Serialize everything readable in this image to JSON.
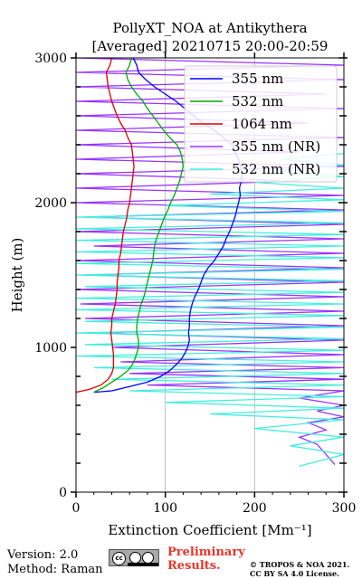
{
  "footer": {
    "version": "Version: 2.0",
    "method": "Method: Raman",
    "prelim_line1": "Preliminary",
    "prelim_line2": "Results.",
    "copyright_line1": "© TROPOS & NOA 2021.",
    "copyright_line2": "CC BY SA 4.0 License.",
    "license_badge_text": "cc",
    "prelim_color": "#e8352a"
  },
  "chart_data": {
    "type": "line",
    "title": "PollyXT_NOA at Antikythera",
    "subtitle": "[Averaged] 20210715 20:00-20:59",
    "xlabel": "Extinction Coefficient [Mm⁻¹]",
    "ylabel": "Height (m)",
    "xlim": [
      0,
      300
    ],
    "ylim": [
      0,
      3000
    ],
    "xticks": [
      0,
      100,
      200,
      300
    ],
    "yticks": [
      0,
      1000,
      2000,
      3000
    ],
    "grid": "vertical",
    "legend_position": "top-right",
    "series": [
      {
        "name": "355 nm",
        "color": "#0000ff",
        "points": [
          [
            20,
            690
          ],
          [
            40,
            700
          ],
          [
            60,
            730
          ],
          [
            80,
            760
          ],
          [
            95,
            800
          ],
          [
            105,
            840
          ],
          [
            112,
            880
          ],
          [
            118,
            920
          ],
          [
            122,
            960
          ],
          [
            125,
            1000
          ],
          [
            127,
            1050
          ],
          [
            126,
            1100
          ],
          [
            127,
            1150
          ],
          [
            127,
            1200
          ],
          [
            128,
            1250
          ],
          [
            130,
            1300
          ],
          [
            133,
            1350
          ],
          [
            137,
            1400
          ],
          [
            140,
            1450
          ],
          [
            143,
            1500
          ],
          [
            148,
            1550
          ],
          [
            155,
            1600
          ],
          [
            160,
            1650
          ],
          [
            165,
            1700
          ],
          [
            168,
            1750
          ],
          [
            172,
            1800
          ],
          [
            175,
            1850
          ],
          [
            178,
            1900
          ],
          [
            180,
            1950
          ],
          [
            182,
            2000
          ],
          [
            184,
            2050
          ],
          [
            183,
            2100
          ],
          [
            185,
            2150
          ],
          [
            186,
            2200
          ],
          [
            184,
            2250
          ],
          [
            182,
            2300
          ],
          [
            178,
            2350
          ],
          [
            175,
            2400
          ],
          [
            165,
            2450
          ],
          [
            155,
            2500
          ],
          [
            142,
            2550
          ],
          [
            132,
            2600
          ],
          [
            122,
            2650
          ],
          [
            112,
            2700
          ],
          [
            100,
            2750
          ],
          [
            88,
            2800
          ],
          [
            78,
            2850
          ],
          [
            70,
            2900
          ],
          [
            68,
            2950
          ],
          [
            64,
            3000
          ]
        ]
      },
      {
        "name": "532 nm",
        "color": "#00aa00",
        "points": [
          [
            20,
            690
          ],
          [
            30,
            720
          ],
          [
            40,
            760
          ],
          [
            50,
            800
          ],
          [
            58,
            840
          ],
          [
            63,
            880
          ],
          [
            66,
            920
          ],
          [
            68,
            960
          ],
          [
            70,
            1000
          ],
          [
            70,
            1050
          ],
          [
            68,
            1100
          ],
          [
            68,
            1150
          ],
          [
            69,
            1200
          ],
          [
            71,
            1250
          ],
          [
            73,
            1300
          ],
          [
            76,
            1350
          ],
          [
            78,
            1400
          ],
          [
            80,
            1450
          ],
          [
            82,
            1500
          ],
          [
            84,
            1550
          ],
          [
            86,
            1600
          ],
          [
            87,
            1650
          ],
          [
            88,
            1700
          ],
          [
            90,
            1750
          ],
          [
            93,
            1800
          ],
          [
            96,
            1850
          ],
          [
            99,
            1900
          ],
          [
            103,
            1950
          ],
          [
            106,
            2000
          ],
          [
            110,
            2050
          ],
          [
            113,
            2100
          ],
          [
            116,
            2150
          ],
          [
            118,
            2200
          ],
          [
            120,
            2250
          ],
          [
            119,
            2300
          ],
          [
            117,
            2350
          ],
          [
            113,
            2400
          ],
          [
            105,
            2450
          ],
          [
            98,
            2500
          ],
          [
            92,
            2550
          ],
          [
            86,
            2600
          ],
          [
            80,
            2650
          ],
          [
            75,
            2700
          ],
          [
            68,
            2750
          ],
          [
            62,
            2800
          ],
          [
            58,
            2850
          ],
          [
            56,
            2900
          ],
          [
            60,
            2950
          ],
          [
            62,
            3000
          ]
        ]
      },
      {
        "name": "1064 nm",
        "color": "#dd0000",
        "points": [
          [
            0,
            690
          ],
          [
            15,
            710
          ],
          [
            28,
            740
          ],
          [
            36,
            780
          ],
          [
            40,
            820
          ],
          [
            42,
            860
          ],
          [
            42,
            900
          ],
          [
            42,
            950
          ],
          [
            41,
            1000
          ],
          [
            40,
            1050
          ],
          [
            39,
            1100
          ],
          [
            40,
            1150
          ],
          [
            40,
            1200
          ],
          [
            42,
            1250
          ],
          [
            44,
            1300
          ],
          [
            45,
            1350
          ],
          [
            46,
            1400
          ],
          [
            46,
            1450
          ],
          [
            47,
            1500
          ],
          [
            48,
            1550
          ],
          [
            48,
            1600
          ],
          [
            50,
            1650
          ],
          [
            51,
            1700
          ],
          [
            52,
            1750
          ],
          [
            53,
            1800
          ],
          [
            55,
            1850
          ],
          [
            57,
            1900
          ],
          [
            58,
            1950
          ],
          [
            60,
            2000
          ],
          [
            61,
            2050
          ],
          [
            62,
            2100
          ],
          [
            63,
            2150
          ],
          [
            64,
            2200
          ],
          [
            65,
            2250
          ],
          [
            64,
            2300
          ],
          [
            63,
            2350
          ],
          [
            62,
            2400
          ],
          [
            58,
            2450
          ],
          [
            55,
            2500
          ],
          [
            50,
            2550
          ],
          [
            46,
            2600
          ],
          [
            43,
            2650
          ],
          [
            40,
            2700
          ],
          [
            38,
            2750
          ],
          [
            36,
            2800
          ],
          [
            35,
            2850
          ],
          [
            34,
            2900
          ],
          [
            38,
            2950
          ],
          [
            40,
            3000
          ]
        ]
      },
      {
        "name": "355 nm (NR)",
        "color": "#9933ff",
        "points": [
          [
            290,
            190
          ],
          [
            280,
            260
          ],
          [
            270,
            330
          ],
          [
            250,
            380
          ],
          [
            280,
            430
          ],
          [
            260,
            480
          ],
          [
            300,
            520
          ],
          [
            270,
            560
          ],
          [
            300,
            600
          ],
          [
            250,
            650
          ],
          [
            300,
            700
          ],
          [
            80,
            740
          ],
          [
            300,
            780
          ],
          [
            60,
            820
          ],
          [
            300,
            860
          ],
          [
            50,
            900
          ],
          [
            300,
            950
          ],
          [
            40,
            1000
          ],
          [
            300,
            1050
          ],
          [
            20,
            1100
          ],
          [
            300,
            1150
          ],
          [
            10,
            1200
          ],
          [
            300,
            1250
          ],
          [
            5,
            1300
          ],
          [
            300,
            1350
          ],
          [
            0,
            1400
          ],
          [
            300,
            1450
          ],
          [
            10,
            1500
          ],
          [
            300,
            1550
          ],
          [
            0,
            1600
          ],
          [
            300,
            1650
          ],
          [
            20,
            1700
          ],
          [
            300,
            1750
          ],
          [
            0,
            1800
          ],
          [
            300,
            1850
          ],
          [
            10,
            1900
          ],
          [
            300,
            1950
          ],
          [
            0,
            2000
          ],
          [
            300,
            2050
          ],
          [
            0,
            2100
          ],
          [
            250,
            2150
          ],
          [
            0,
            2200
          ],
          [
            300,
            2250
          ],
          [
            0,
            2300
          ],
          [
            250,
            2350
          ],
          [
            0,
            2400
          ],
          [
            300,
            2450
          ],
          [
            0,
            2500
          ],
          [
            260,
            2550
          ],
          [
            0,
            2600
          ],
          [
            300,
            2650
          ],
          [
            0,
            2700
          ],
          [
            280,
            2750
          ],
          [
            0,
            2800
          ],
          [
            300,
            2850
          ],
          [
            0,
            2900
          ],
          [
            300,
            2950
          ],
          [
            0,
            3000
          ]
        ]
      },
      {
        "name": "532 nm (NR)",
        "color": "#44eedd",
        "points": [
          [
            250,
            180
          ],
          [
            300,
            260
          ],
          [
            240,
            320
          ],
          [
            300,
            380
          ],
          [
            200,
            440
          ],
          [
            300,
            500
          ],
          [
            150,
            540
          ],
          [
            300,
            580
          ],
          [
            100,
            620
          ],
          [
            300,
            660
          ],
          [
            60,
            700
          ],
          [
            300,
            740
          ],
          [
            40,
            780
          ],
          [
            300,
            820
          ],
          [
            20,
            860
          ],
          [
            300,
            900
          ],
          [
            0,
            940
          ],
          [
            300,
            980
          ],
          [
            10,
            1020
          ],
          [
            300,
            1060
          ],
          [
            0,
            1100
          ],
          [
            300,
            1140
          ],
          [
            10,
            1180
          ],
          [
            300,
            1220
          ],
          [
            0,
            1260
          ],
          [
            300,
            1300
          ],
          [
            0,
            1340
          ],
          [
            300,
            1380
          ],
          [
            10,
            1420
          ],
          [
            300,
            1460
          ],
          [
            0,
            1500
          ],
          [
            300,
            1540
          ],
          [
            0,
            1580
          ],
          [
            300,
            1620
          ],
          [
            0,
            1660
          ],
          [
            300,
            1700
          ],
          [
            0,
            1740
          ],
          [
            300,
            1780
          ],
          [
            0,
            1820
          ],
          [
            300,
            1860
          ],
          [
            0,
            1900
          ],
          [
            300,
            1940
          ],
          [
            100,
            1980
          ],
          [
            300,
            2020
          ],
          [
            150,
            2060
          ],
          [
            300,
            2100
          ],
          [
            200,
            2140
          ],
          [
            300,
            2180
          ],
          [
            220,
            2220
          ],
          [
            300,
            2260
          ],
          [
            230,
            2300
          ],
          [
            300,
            2340
          ]
        ]
      }
    ]
  }
}
